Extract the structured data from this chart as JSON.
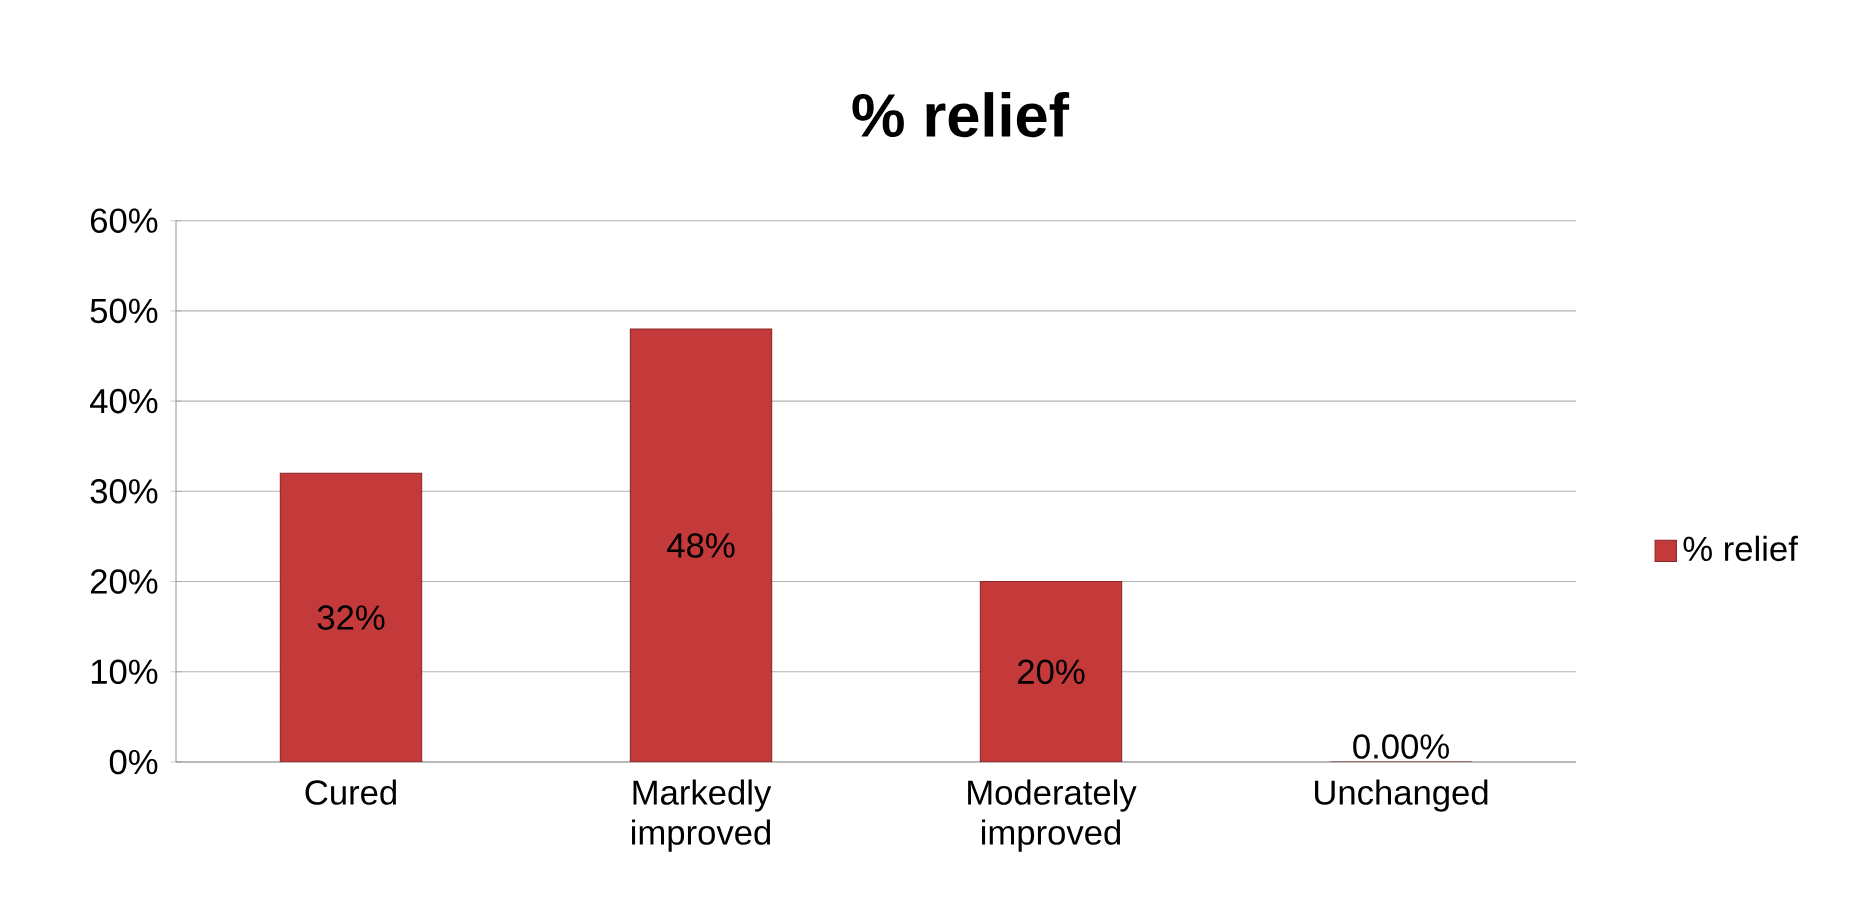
{
  "chart_data": {
    "type": "bar",
    "title": "% relief",
    "categories": [
      "Cured",
      "Markedly improved",
      "Moderately improved",
      "Unchanged"
    ],
    "series": [
      {
        "name": "% relief",
        "color": "#c4393a",
        "values": [
          32,
          48,
          20,
          0
        ],
        "value_labels": [
          "32%",
          "48%",
          "20%",
          "0.00%"
        ]
      }
    ],
    "ylim": [
      0,
      60
    ],
    "yticks": [
      {
        "value": 0,
        "label": "0%"
      },
      {
        "value": 10,
        "label": "10%"
      },
      {
        "value": 20,
        "label": "20%"
      },
      {
        "value": 30,
        "label": "30%"
      },
      {
        "value": 40,
        "label": "40%"
      },
      {
        "value": 50,
        "label": "50%"
      },
      {
        "value": 60,
        "label": "60%"
      }
    ],
    "grid": "y",
    "legend": "right"
  }
}
